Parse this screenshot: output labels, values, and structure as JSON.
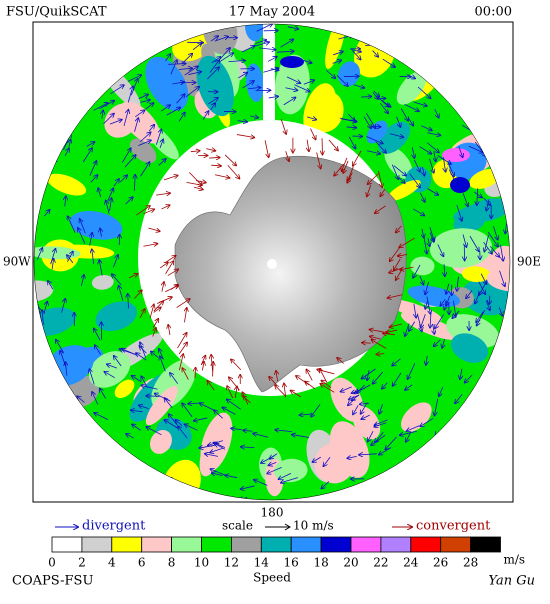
{
  "header": {
    "left": "FSU/QuikSCAT",
    "center": "17 May 2004",
    "right": "00:00"
  },
  "map": {
    "west_label": "90W",
    "east_label": "90E",
    "bottom_label": "180"
  },
  "legend": {
    "divergent": "divergent",
    "scale": "scale",
    "scale_value": "10 m/s",
    "convergent": "convergent"
  },
  "colorbar": {
    "colors": [
      "#ffffff",
      "#d0d0d0",
      "#ffff00",
      "#ffc8c8",
      "#98f898",
      "#00e800",
      "#a0a0a0",
      "#00b0b0",
      "#2890ff",
      "#0000d0",
      "#ff60ff",
      "#b080ff",
      "#ff0000",
      "#d04000",
      "#000000"
    ],
    "ticks": [
      0,
      2,
      4,
      6,
      8,
      10,
      12,
      14,
      16,
      18,
      20,
      22,
      24,
      26,
      28
    ],
    "unit": "m/s",
    "label": "Speed"
  },
  "footer": {
    "left": "COAPS-FSU",
    "right": "Yan Gu"
  }
}
